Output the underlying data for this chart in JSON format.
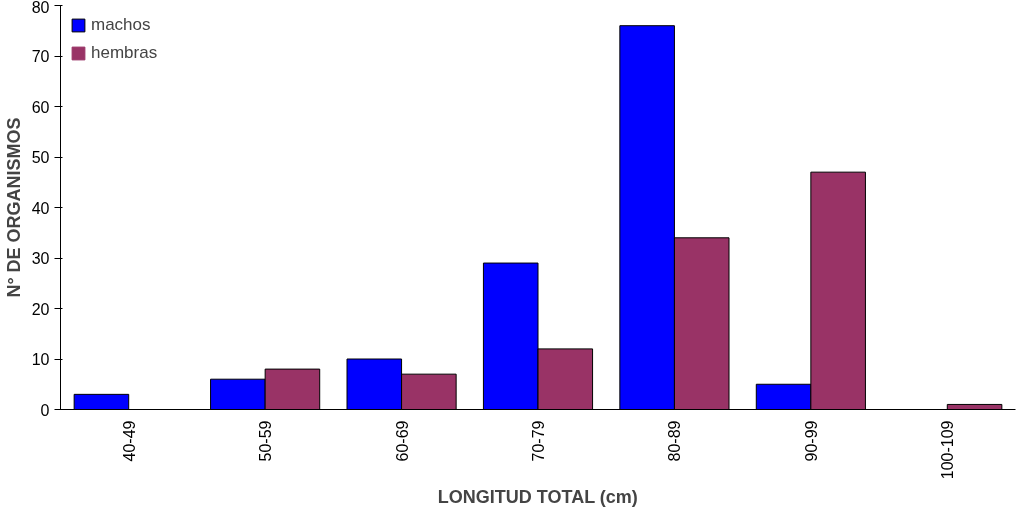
{
  "chart_data": {
    "type": "bar",
    "xlabel": "LONGITUD TOTAL (cm)",
    "ylabel": "N° DE ORGANISMOS",
    "categories": [
      "40-49",
      "50-59",
      "60-69",
      "70-79",
      "80-89",
      "90-99",
      "100-109"
    ],
    "series": [
      {
        "name": "machos",
        "color": "#0000ff",
        "values": [
          3,
          6,
          10,
          29,
          76,
          5,
          0
        ]
      },
      {
        "name": "hembras",
        "color": "#993366",
        "values": [
          0,
          8,
          7,
          12,
          34,
          47,
          1
        ]
      }
    ],
    "ylim": [
      0,
      80
    ],
    "yticks": [
      0,
      10,
      20,
      30,
      40,
      50,
      60,
      70,
      80
    ],
    "grid": false,
    "legend": "top left"
  }
}
